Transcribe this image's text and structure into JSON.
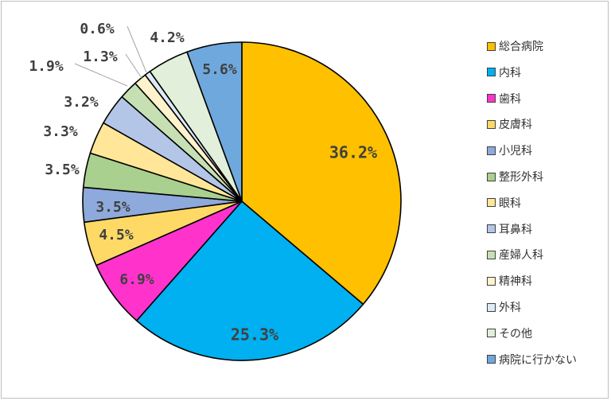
{
  "chart_data": {
    "type": "pie",
    "start_angle_deg": 0,
    "direction": "clockwise",
    "legend_position": "right",
    "slices": [
      {
        "label": "総合病院",
        "value": 36.2,
        "display": "36.2%",
        "color": "#FFC000"
      },
      {
        "label": "内科",
        "value": 25.3,
        "display": "25.3%",
        "color": "#00B0F0"
      },
      {
        "label": "歯科",
        "value": 6.9,
        "display": "6.9%",
        "color": "#FF33CC"
      },
      {
        "label": "皮膚科",
        "value": 4.5,
        "display": "4.5%",
        "color": "#FFD966"
      },
      {
        "label": "小児科",
        "value": 3.5,
        "display": "3.5%",
        "color": "#8EA9DB"
      },
      {
        "label": "整形外科",
        "value": 3.5,
        "display": "3.5%",
        "color": "#A9D08E"
      },
      {
        "label": "眼科",
        "value": 3.3,
        "display": "3.3%",
        "color": "#FFE699"
      },
      {
        "label": "耳鼻科",
        "value": 3.2,
        "display": "3.2%",
        "color": "#B4C6E7"
      },
      {
        "label": "産婦人科",
        "value": 1.9,
        "display": "1.9%",
        "color": "#C6E0B4"
      },
      {
        "label": "精神科",
        "value": 1.3,
        "display": "1.3%",
        "color": "#FFF2CC"
      },
      {
        "label": "外科",
        "value": 0.6,
        "display": "0.6%",
        "color": "#DDEBF7"
      },
      {
        "label": "その他",
        "value": 4.2,
        "display": "4.2%",
        "color": "#E2EFDA"
      },
      {
        "label": "病院に行かない",
        "value": 5.6,
        "display": "5.6%",
        "color": "#6FA8DC"
      }
    ]
  }
}
